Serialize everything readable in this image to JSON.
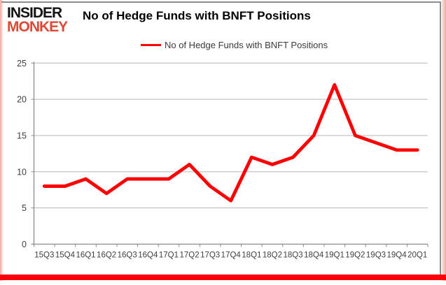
{
  "logo": {
    "line1": "INSIDER",
    "line2": "MONKEY"
  },
  "header": {
    "title": "No of Hedge Funds with BNFT Positions"
  },
  "legend": {
    "label": "No of Hedge Funds with BNFT Positions"
  },
  "chart_data": {
    "type": "line",
    "title": "No of Hedge Funds with BNFT Positions",
    "series_name": "No of Hedge Funds with BNFT Positions",
    "categories": [
      "15Q3",
      "15Q4",
      "16Q1",
      "16Q2",
      "16Q3",
      "16Q4",
      "17Q1",
      "17Q2",
      "17Q3",
      "17Q4",
      "18Q1",
      "18Q2",
      "18Q3",
      "18Q4",
      "19Q1",
      "19Q2",
      "19Q3",
      "19Q4",
      "20Q1"
    ],
    "values": [
      8,
      8,
      9,
      7,
      9,
      9,
      9,
      11,
      8,
      6,
      12,
      11,
      12,
      15,
      22,
      15,
      14,
      13,
      13
    ],
    "xlabel": "",
    "ylabel": "",
    "ylim": [
      0,
      25
    ],
    "ytick_step": 5,
    "grid": true,
    "legend_position": "top",
    "line_color": "#ff0000",
    "grid_color": "#b7b7b7",
    "axis_color": "#8a8a8a",
    "tick_label_color": "#404040"
  },
  "colors": {
    "brand_red": "#dc4937",
    "frame_pink": "#f2a8a1",
    "frame_bottom_red": "#fb0007",
    "frame_gray": "#8e8e8e"
  }
}
